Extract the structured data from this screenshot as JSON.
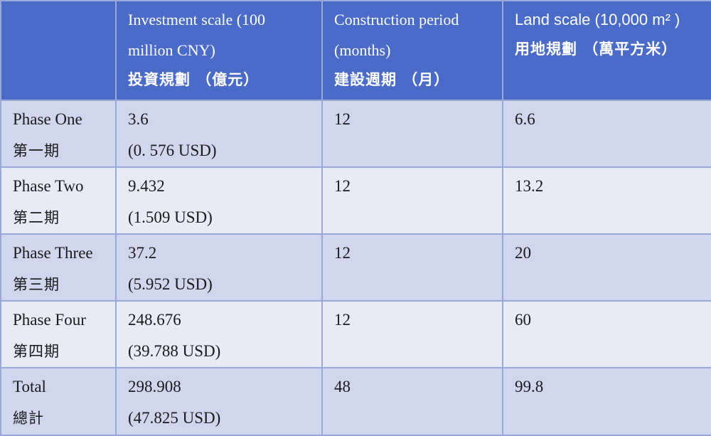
{
  "table": {
    "headers": [
      {
        "en": "",
        "zh": ""
      },
      {
        "en": "Investment scale (100 million CNY)",
        "zh": "投資規劃 （億元）"
      },
      {
        "en": "Construction period (months)",
        "zh": "建設週期 （月）"
      },
      {
        "en": "Land scale (10,000 m² )",
        "zh": "用地規劃 （萬平方米）"
      }
    ],
    "rows": [
      {
        "phase_en": "Phase One",
        "phase_zh": "第一期",
        "investment": "3.6",
        "investment_usd": "(0. 576 USD)",
        "period": "12",
        "land": "6.6"
      },
      {
        "phase_en": "Phase Two",
        "phase_zh": "第二期",
        "investment": "9.432",
        "investment_usd": "(1.509 USD)",
        "period": "12",
        "land": "13.2"
      },
      {
        "phase_en": "Phase Three",
        "phase_zh": "第三期",
        "investment": "37.2",
        "investment_usd": "(5.952 USD)",
        "period": "12",
        "land": "20"
      },
      {
        "phase_en": "Phase Four",
        "phase_zh": "第四期",
        "investment": "248.676",
        "investment_usd": "(39.788 USD)",
        "period": "12",
        "land": "60"
      },
      {
        "phase_en": "Total",
        "phase_zh": "總計",
        "investment": "298.908",
        "investment_usd": "(47.825 USD)",
        "period": "48",
        "land": "99.8"
      }
    ],
    "colors": {
      "header_bg": "#4a6bc8",
      "row_shade": "#cfd6ee",
      "row_plain": "#e8ebf6",
      "border": "#9aa9d8"
    }
  }
}
